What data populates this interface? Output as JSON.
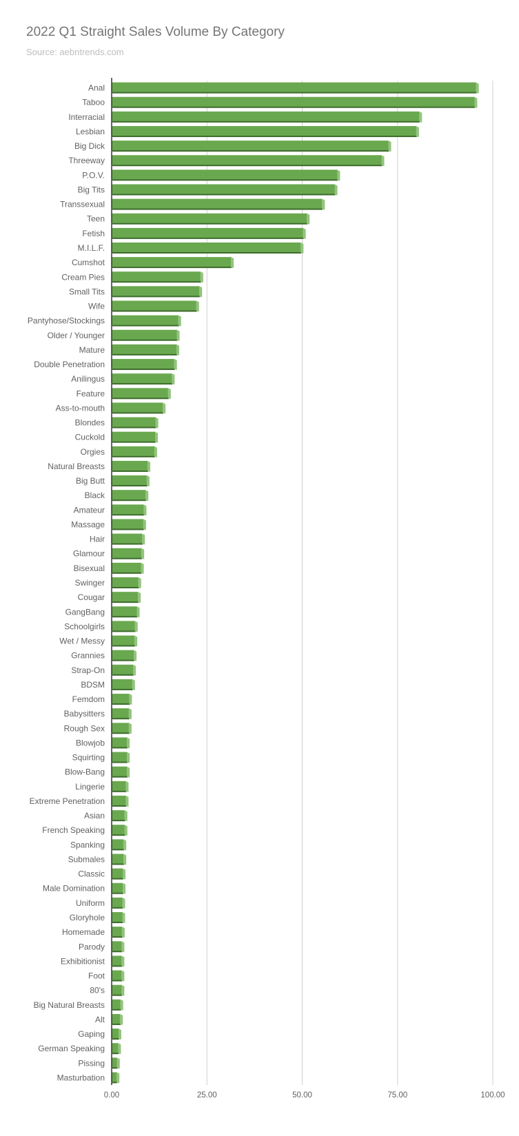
{
  "chart_data": {
    "type": "bar",
    "orientation": "horizontal",
    "title": "2022 Q1 Straight Sales Volume By Category",
    "subtitle": "Source: aebntrends.com",
    "xlim": [
      0,
      100
    ],
    "ticks": [
      "0.00",
      "25.00",
      "50.00",
      "75.00",
      "100.00"
    ],
    "grid": true,
    "bar_color": "#6aa84f",
    "bar_shadow_color": "#3d6b2c",
    "bar_side_color": "#93c47d",
    "categories": [
      "Anal",
      "Taboo",
      "Interracial",
      "Lesbian",
      "Big Dick",
      "Threeway",
      "P.O.V.",
      "Big Tits",
      "Transsexual",
      "Teen",
      "Fetish",
      "M.I.L.F.",
      "Cumshot",
      "Cream Pies",
      "Small Tits",
      "Wife",
      "Pantyhose/Stockings",
      "Older / Younger",
      "Mature",
      "Double Penetration",
      "Anilingus",
      "Feature",
      "Ass-to-mouth",
      "Blondes",
      "Cuckold",
      "Orgies",
      "Natural Breasts",
      "Big Butt",
      "Black",
      "Amateur",
      "Massage",
      "Hair",
      "Glamour",
      "Bisexual",
      "Swinger",
      "Cougar",
      "GangBang",
      "Schoolgirls",
      "Wet / Messy",
      "Grannies",
      "Strap-On",
      "BDSM",
      "Femdom",
      "Babysitters",
      "Rough Sex",
      "Blowjob",
      "Squirting",
      "Blow-Bang",
      "Lingerie",
      "Extreme Penetration",
      "Asian",
      "French Speaking",
      "Spanking",
      "Submales",
      "Classic",
      "Male Domination",
      "Uniform",
      "Gloryhole",
      "Homemade",
      "Parody",
      "Exhibitionist",
      "Foot",
      "80's",
      "Big Natural Breasts",
      "Alt",
      "Gaping",
      "German Speaking",
      "Pissing",
      "Masturbation"
    ],
    "values": [
      95.6,
      95.2,
      80.7,
      79.9,
      72.6,
      70.8,
      59.2,
      58.5,
      55.2,
      51.2,
      50.2,
      49.6,
      31.3,
      23.3,
      23.0,
      22.2,
      17.5,
      17.1,
      17.0,
      16.4,
      15.8,
      14.8,
      13.4,
      11.5,
      11.4,
      11.2,
      9.4,
      9.2,
      8.9,
      8.4,
      8.3,
      8.0,
      7.8,
      7.7,
      7.0,
      6.9,
      6.6,
      6.1,
      6.0,
      5.8,
      5.6,
      5.4,
      4.6,
      4.5,
      4.5,
      4.0,
      4.0,
      4.0,
      3.7,
      3.7,
      3.4,
      3.4,
      3.1,
      3.1,
      2.9,
      2.9,
      2.8,
      2.8,
      2.7,
      2.6,
      2.6,
      2.6,
      2.6,
      2.3,
      2.2,
      1.8,
      1.7,
      1.4,
      1.3
    ]
  }
}
